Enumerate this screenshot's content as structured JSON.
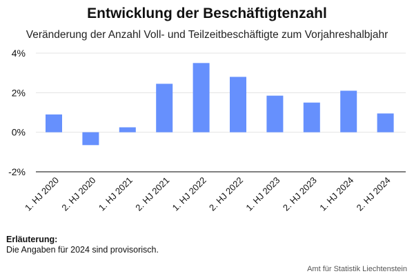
{
  "chart_data": {
    "type": "bar",
    "title": "Entwicklung der Beschäftigtenzahl",
    "subtitle": "Veränderung der Anzahl Voll- und Teilzeitbeschäftigte zum Vorjahreshalbjahr",
    "categories": [
      "1. HJ 2020",
      "2. HJ 2020",
      "1. HJ 2021",
      "2. HJ 2021",
      "1. HJ 2022",
      "2. HJ 2022",
      "1. HJ 2023",
      "2. HJ 2023",
      "1. HJ 2024",
      "2. HJ 2024"
    ],
    "values": [
      0.9,
      -0.65,
      0.25,
      2.45,
      3.5,
      2.8,
      1.85,
      1.5,
      2.1,
      0.95
    ],
    "ylim": [
      -2,
      4
    ],
    "yticks": [
      4,
      2,
      0,
      -2
    ],
    "ytick_labels": [
      "4%",
      "2%",
      "0%",
      "-2%"
    ],
    "bar_color": "#6690fd",
    "grid": true
  },
  "note": {
    "heading": "Erläuterung:",
    "text": "Die Angaben für 2024 sind provisorisch."
  },
  "source": "Amt für Statistik Liechtenstein"
}
